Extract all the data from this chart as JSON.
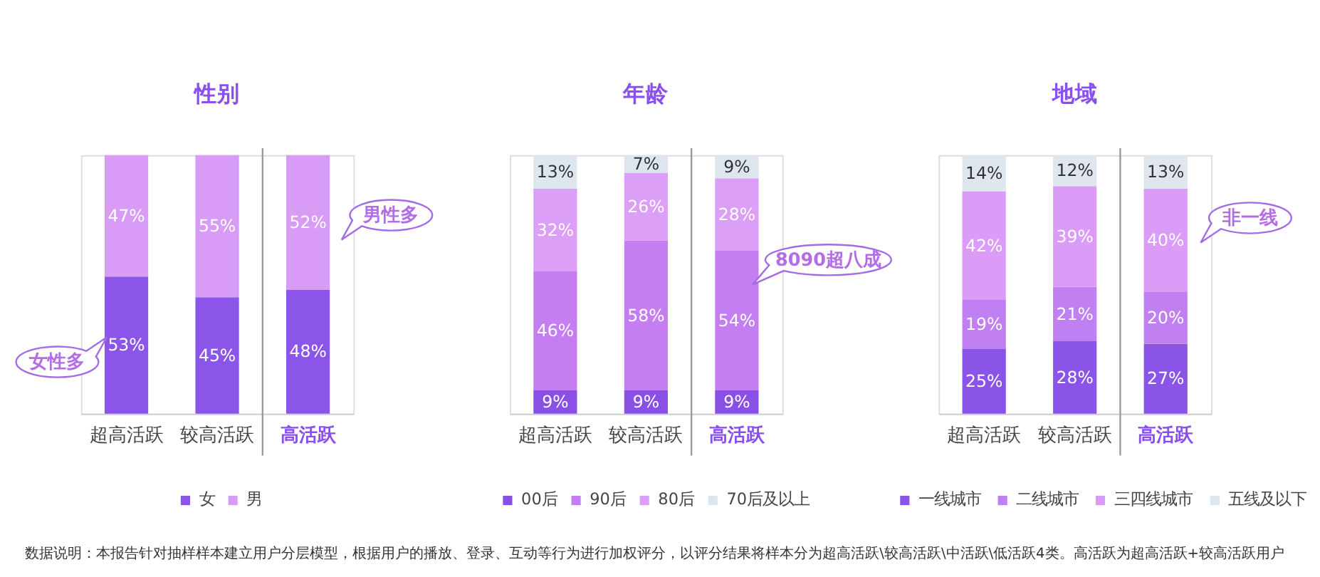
{
  "chart_data": [
    {
      "type": "bar",
      "title": "性别",
      "categories": [
        "超高活跃",
        "较高活跃",
        "高活跃"
      ],
      "stacked": true,
      "ylim": [
        0,
        100
      ],
      "tick_labels": "x",
      "legend": "bottom",
      "series": [
        {
          "name": "女",
          "color": "#8b55e9",
          "values": [
            53,
            45,
            48
          ],
          "value_labels": [
            "53%",
            "45%",
            "48%"
          ]
        },
        {
          "name": "男",
          "color": "#d89cf6",
          "values": [
            47,
            55,
            52
          ],
          "value_labels": [
            "47%",
            "55%",
            "52%"
          ]
        }
      ],
      "annotations": [
        "女性多",
        "男性多",
        "数据说明：本报告针对抽样样本建立用户分层模型，根据用户的播放、登录、互动等行为进行加权评分，以评分结果将样本分为超高活跃\\较高活跃\\中活跃\\低活跃4类。高活跃为超高活跃+较高活跃用户"
      ]
    },
    {
      "type": "bar",
      "title": "年龄",
      "categories": [
        "超高活跃",
        "较高活跃",
        "高活跃"
      ],
      "stacked": true,
      "ylim": [
        0,
        100
      ],
      "tick_labels": "x",
      "legend": "bottom",
      "series": [
        {
          "name": "00后",
          "color": "#8a50e6",
          "values": [
            9,
            9,
            9
          ],
          "value_labels": [
            "9%",
            "9%",
            "9%"
          ]
        },
        {
          "name": "90后",
          "color": "#c47ef2",
          "values": [
            46,
            58,
            54
          ],
          "value_labels": [
            "46%",
            "58%",
            "54%"
          ]
        },
        {
          "name": "80后",
          "color": "#dc9ff7",
          "values": [
            32,
            26,
            28
          ],
          "value_labels": [
            "32%",
            "26%",
            "28%"
          ]
        },
        {
          "name": "70后及以上",
          "color": "#dde6ee",
          "values": [
            13,
            7,
            9
          ],
          "value_labels": [
            "13%",
            "7%",
            "9%"
          ]
        }
      ],
      "annotations": [
        "8090超八成"
      ]
    },
    {
      "type": "bar",
      "title": "地域",
      "categories": [
        "超高活跃",
        "较高活跃",
        "高活跃"
      ],
      "stacked": true,
      "ylim": [
        0,
        100
      ],
      "tick_labels": "x",
      "legend": "bottom",
      "series": [
        {
          "name": "一线城市",
          "color": "#8b54e8",
          "values": [
            25,
            28,
            27
          ],
          "value_labels": [
            "25%",
            "28%",
            "27%"
          ]
        },
        {
          "name": "二线城市",
          "color": "#c080f1",
          "values": [
            19,
            21,
            20
          ],
          "value_labels": [
            "19%",
            "21%",
            "20%"
          ]
        },
        {
          "name": "三四线城市",
          "color": "#da9cf6",
          "values": [
            42,
            39,
            40
          ],
          "value_labels": [
            "42%",
            "39%",
            "40%"
          ]
        },
        {
          "name": "五线及以下",
          "color": "#dfe6ee",
          "values": [
            14,
            12,
            13
          ],
          "value_labels": [
            "14%",
            "12%",
            "13%"
          ]
        }
      ],
      "annotations": [
        "非一线"
      ]
    }
  ]
}
